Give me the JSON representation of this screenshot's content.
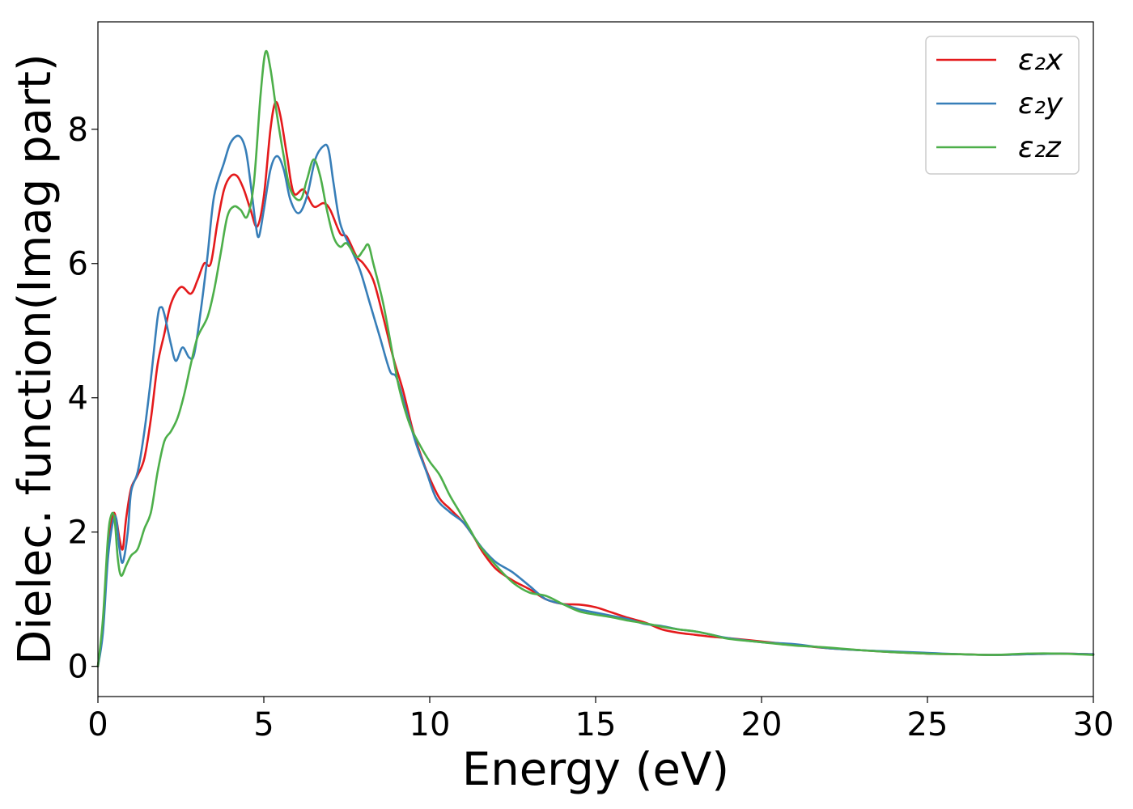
{
  "chart_data": {
    "type": "line",
    "title": "",
    "xlabel": "Energy (eV)",
    "ylabel": "Dielec. function(Imag part)",
    "xlim": [
      0,
      30
    ],
    "ylim": [
      -0.45,
      9.6
    ],
    "x_ticks": [
      0,
      5,
      10,
      15,
      20,
      25,
      30
    ],
    "y_ticks": [
      0,
      2,
      4,
      6,
      8
    ],
    "grid": false,
    "legend_position": "top-right",
    "series": [
      {
        "name": "ε₂x",
        "color": "#e41a1c",
        "points": [
          [
            0,
            0
          ],
          [
            0.15,
            0.6
          ],
          [
            0.3,
            1.7
          ],
          [
            0.45,
            2.25
          ],
          [
            0.55,
            2.2
          ],
          [
            0.65,
            1.9
          ],
          [
            0.75,
            1.75
          ],
          [
            0.85,
            2.2
          ],
          [
            1.0,
            2.65
          ],
          [
            1.2,
            2.85
          ],
          [
            1.4,
            3.1
          ],
          [
            1.6,
            3.7
          ],
          [
            1.8,
            4.5
          ],
          [
            2.0,
            4.95
          ],
          [
            2.2,
            5.4
          ],
          [
            2.5,
            5.65
          ],
          [
            2.8,
            5.55
          ],
          [
            3.0,
            5.75
          ],
          [
            3.2,
            6.0
          ],
          [
            3.4,
            6.0
          ],
          [
            3.6,
            6.6
          ],
          [
            3.8,
            7.1
          ],
          [
            4.0,
            7.3
          ],
          [
            4.2,
            7.3
          ],
          [
            4.4,
            7.1
          ],
          [
            4.6,
            6.8
          ],
          [
            4.8,
            6.55
          ],
          [
            5.0,
            7.0
          ],
          [
            5.2,
            8.0
          ],
          [
            5.35,
            8.4
          ],
          [
            5.5,
            8.2
          ],
          [
            5.7,
            7.6
          ],
          [
            5.9,
            7.05
          ],
          [
            6.2,
            7.1
          ],
          [
            6.5,
            6.85
          ],
          [
            6.8,
            6.9
          ],
          [
            7.0,
            6.8
          ],
          [
            7.3,
            6.45
          ],
          [
            7.5,
            6.4
          ],
          [
            7.8,
            6.1
          ],
          [
            8.0,
            6.0
          ],
          [
            8.3,
            5.75
          ],
          [
            8.6,
            5.2
          ],
          [
            8.9,
            4.6
          ],
          [
            9.2,
            4.1
          ],
          [
            9.5,
            3.5
          ],
          [
            9.8,
            3.05
          ],
          [
            10.0,
            2.8
          ],
          [
            10.3,
            2.5
          ],
          [
            10.6,
            2.35
          ],
          [
            11.0,
            2.15
          ],
          [
            11.3,
            1.95
          ],
          [
            11.6,
            1.7
          ],
          [
            12.0,
            1.45
          ],
          [
            12.5,
            1.28
          ],
          [
            13.0,
            1.15
          ],
          [
            13.5,
            1.0
          ],
          [
            14.0,
            0.93
          ],
          [
            14.5,
            0.92
          ],
          [
            15.0,
            0.88
          ],
          [
            15.5,
            0.8
          ],
          [
            16.0,
            0.72
          ],
          [
            16.5,
            0.65
          ],
          [
            17.0,
            0.55
          ],
          [
            17.5,
            0.5
          ],
          [
            18.0,
            0.47
          ],
          [
            18.5,
            0.44
          ],
          [
            19.0,
            0.42
          ],
          [
            20.0,
            0.37
          ],
          [
            21.0,
            0.32
          ],
          [
            22.0,
            0.27
          ],
          [
            23.0,
            0.24
          ],
          [
            24.0,
            0.21
          ],
          [
            25.0,
            0.19
          ],
          [
            26.0,
            0.18
          ],
          [
            27.0,
            0.17
          ],
          [
            28.0,
            0.18
          ],
          [
            29.0,
            0.19
          ],
          [
            30.0,
            0.18
          ]
        ]
      },
      {
        "name": "ε₂y",
        "color": "#377eb8",
        "points": [
          [
            0,
            0
          ],
          [
            0.15,
            0.5
          ],
          [
            0.3,
            1.6
          ],
          [
            0.45,
            2.15
          ],
          [
            0.55,
            2.2
          ],
          [
            0.65,
            1.75
          ],
          [
            0.75,
            1.55
          ],
          [
            0.9,
            2.0
          ],
          [
            1.0,
            2.6
          ],
          [
            1.2,
            2.9
          ],
          [
            1.4,
            3.5
          ],
          [
            1.6,
            4.3
          ],
          [
            1.8,
            5.2
          ],
          [
            1.9,
            5.35
          ],
          [
            2.0,
            5.25
          ],
          [
            2.2,
            4.8
          ],
          [
            2.35,
            4.55
          ],
          [
            2.55,
            4.75
          ],
          [
            2.75,
            4.6
          ],
          [
            2.9,
            4.65
          ],
          [
            3.1,
            5.3
          ],
          [
            3.3,
            6.1
          ],
          [
            3.5,
            7.0
          ],
          [
            3.8,
            7.5
          ],
          [
            4.0,
            7.8
          ],
          [
            4.25,
            7.9
          ],
          [
            4.45,
            7.7
          ],
          [
            4.6,
            7.2
          ],
          [
            4.75,
            6.6
          ],
          [
            4.85,
            6.4
          ],
          [
            5.0,
            6.8
          ],
          [
            5.2,
            7.4
          ],
          [
            5.4,
            7.6
          ],
          [
            5.6,
            7.4
          ],
          [
            5.8,
            6.95
          ],
          [
            6.05,
            6.75
          ],
          [
            6.3,
            7.0
          ],
          [
            6.55,
            7.55
          ],
          [
            6.8,
            7.75
          ],
          [
            6.95,
            7.7
          ],
          [
            7.1,
            7.2
          ],
          [
            7.3,
            6.6
          ],
          [
            7.6,
            6.25
          ],
          [
            7.9,
            5.9
          ],
          [
            8.2,
            5.4
          ],
          [
            8.5,
            4.9
          ],
          [
            8.8,
            4.4
          ],
          [
            9.0,
            4.3
          ],
          [
            9.3,
            3.8
          ],
          [
            9.6,
            3.3
          ],
          [
            9.9,
            2.9
          ],
          [
            10.2,
            2.5
          ],
          [
            10.6,
            2.3
          ],
          [
            11.0,
            2.15
          ],
          [
            11.3,
            1.95
          ],
          [
            11.6,
            1.75
          ],
          [
            12.0,
            1.55
          ],
          [
            12.5,
            1.4
          ],
          [
            13.0,
            1.2
          ],
          [
            13.5,
            1.0
          ],
          [
            14.0,
            0.93
          ],
          [
            14.5,
            0.85
          ],
          [
            15.0,
            0.8
          ],
          [
            15.5,
            0.75
          ],
          [
            16.0,
            0.7
          ],
          [
            16.5,
            0.63
          ],
          [
            17.0,
            0.6
          ],
          [
            17.5,
            0.55
          ],
          [
            18.0,
            0.52
          ],
          [
            18.5,
            0.47
          ],
          [
            19.0,
            0.42
          ],
          [
            20.0,
            0.36
          ],
          [
            21.0,
            0.33
          ],
          [
            22.0,
            0.27
          ],
          [
            23.0,
            0.24
          ],
          [
            24.0,
            0.22
          ],
          [
            25.0,
            0.2
          ],
          [
            26.0,
            0.18
          ],
          [
            27.0,
            0.17
          ],
          [
            28.0,
            0.18
          ],
          [
            29.0,
            0.19
          ],
          [
            30.0,
            0.18
          ]
        ]
      },
      {
        "name": "ε₂z",
        "color": "#4daf4a",
        "points": [
          [
            0,
            0
          ],
          [
            0.15,
            0.7
          ],
          [
            0.3,
            1.9
          ],
          [
            0.4,
            2.25
          ],
          [
            0.5,
            2.2
          ],
          [
            0.6,
            1.6
          ],
          [
            0.7,
            1.35
          ],
          [
            0.85,
            1.5
          ],
          [
            1.0,
            1.65
          ],
          [
            1.2,
            1.75
          ],
          [
            1.4,
            2.05
          ],
          [
            1.6,
            2.3
          ],
          [
            1.8,
            2.9
          ],
          [
            2.0,
            3.35
          ],
          [
            2.2,
            3.5
          ],
          [
            2.4,
            3.7
          ],
          [
            2.6,
            4.05
          ],
          [
            2.8,
            4.5
          ],
          [
            3.0,
            4.9
          ],
          [
            3.3,
            5.2
          ],
          [
            3.5,
            5.6
          ],
          [
            3.7,
            6.15
          ],
          [
            3.9,
            6.7
          ],
          [
            4.1,
            6.85
          ],
          [
            4.3,
            6.8
          ],
          [
            4.5,
            6.7
          ],
          [
            4.7,
            7.2
          ],
          [
            4.9,
            8.5
          ],
          [
            5.05,
            9.15
          ],
          [
            5.2,
            8.9
          ],
          [
            5.4,
            8.2
          ],
          [
            5.6,
            7.6
          ],
          [
            5.8,
            7.1
          ],
          [
            6.1,
            6.95
          ],
          [
            6.3,
            7.25
          ],
          [
            6.5,
            7.55
          ],
          [
            6.7,
            7.3
          ],
          [
            6.9,
            6.8
          ],
          [
            7.1,
            6.4
          ],
          [
            7.3,
            6.25
          ],
          [
            7.5,
            6.3
          ],
          [
            7.8,
            6.1
          ],
          [
            8.0,
            6.2
          ],
          [
            8.15,
            6.28
          ],
          [
            8.3,
            6.0
          ],
          [
            8.6,
            5.4
          ],
          [
            8.9,
            4.6
          ],
          [
            9.1,
            4.1
          ],
          [
            9.4,
            3.6
          ],
          [
            9.7,
            3.3
          ],
          [
            10.0,
            3.05
          ],
          [
            10.3,
            2.85
          ],
          [
            10.6,
            2.55
          ],
          [
            10.9,
            2.3
          ],
          [
            11.2,
            2.05
          ],
          [
            11.5,
            1.8
          ],
          [
            12.0,
            1.5
          ],
          [
            12.5,
            1.25
          ],
          [
            13.0,
            1.1
          ],
          [
            13.5,
            1.05
          ],
          [
            14.0,
            0.93
          ],
          [
            14.5,
            0.82
          ],
          [
            15.0,
            0.77
          ],
          [
            15.5,
            0.73
          ],
          [
            16.0,
            0.68
          ],
          [
            16.5,
            0.64
          ],
          [
            17.0,
            0.59
          ],
          [
            17.5,
            0.55
          ],
          [
            18.0,
            0.52
          ],
          [
            18.5,
            0.47
          ],
          [
            19.0,
            0.41
          ],
          [
            20.0,
            0.36
          ],
          [
            21.0,
            0.31
          ],
          [
            22.0,
            0.28
          ],
          [
            23.0,
            0.24
          ],
          [
            24.0,
            0.21
          ],
          [
            25.0,
            0.19
          ],
          [
            26.0,
            0.18
          ],
          [
            27.0,
            0.17
          ],
          [
            28.0,
            0.19
          ],
          [
            29.0,
            0.19
          ],
          [
            30.0,
            0.17
          ]
        ]
      }
    ]
  }
}
